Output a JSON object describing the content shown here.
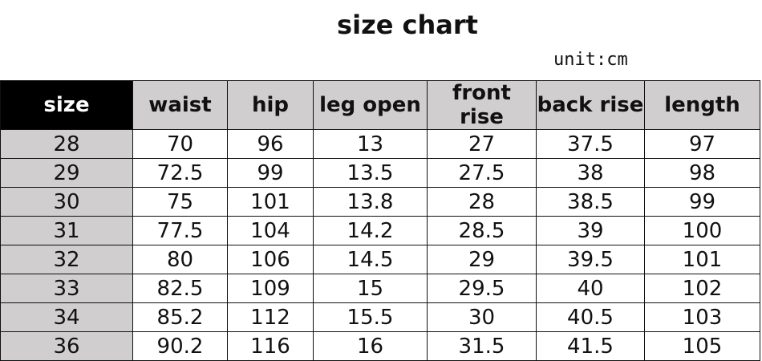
{
  "title": "size chart",
  "unit": "unit:cm",
  "table": {
    "headers": [
      "size",
      "waist",
      "hip",
      "leg open",
      "front rise",
      "back rise",
      "length"
    ],
    "rows": [
      [
        "28",
        "70",
        "96",
        "13",
        "27",
        "37.5",
        "97"
      ],
      [
        "29",
        "72.5",
        "99",
        "13.5",
        "27.5",
        "38",
        "98"
      ],
      [
        "30",
        "75",
        "101",
        "13.8",
        "28",
        "38.5",
        "99"
      ],
      [
        "31",
        "77.5",
        "104",
        "14.2",
        "28.5",
        "39",
        "100"
      ],
      [
        "32",
        "80",
        "106",
        "14.5",
        "29",
        "39.5",
        "101"
      ],
      [
        "33",
        "82.5",
        "109",
        "15",
        "29.5",
        "40",
        "102"
      ],
      [
        "34",
        "85.2",
        "112",
        "15.5",
        "30",
        "40.5",
        "103"
      ],
      [
        "36",
        "90.2",
        "116",
        "16",
        "31.5",
        "41.5",
        "105"
      ]
    ]
  },
  "colors": {
    "header_bg": "#d0cece",
    "size_header_bg": "#000000",
    "size_col_bg": "#d0cece"
  }
}
